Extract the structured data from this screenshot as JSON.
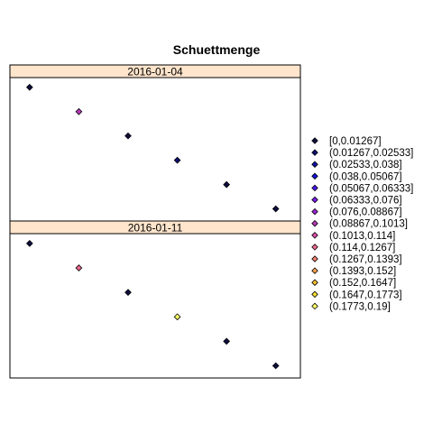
{
  "chart_data": {
    "type": "scatter",
    "title": "Schuettmenge",
    "xlabel": "",
    "ylabel": "",
    "panels": [
      {
        "strip": "2016-01-04",
        "points": [
          {
            "x": 1,
            "y": 6,
            "bin": 0
          },
          {
            "x": 2,
            "y": 5,
            "bin": 7
          },
          {
            "x": 3,
            "y": 4,
            "bin": 0
          },
          {
            "x": 4,
            "y": 3,
            "bin": 1
          },
          {
            "x": 5,
            "y": 2,
            "bin": 0
          },
          {
            "x": 6,
            "y": 1,
            "bin": 0
          }
        ]
      },
      {
        "strip": "2016-01-11",
        "points": [
          {
            "x": 1,
            "y": 6,
            "bin": 0
          },
          {
            "x": 2,
            "y": 5,
            "bin": 9
          },
          {
            "x": 3,
            "y": 4,
            "bin": 0
          },
          {
            "x": 4,
            "y": 3,
            "bin": 14
          },
          {
            "x": 5,
            "y": 2,
            "bin": 0
          },
          {
            "x": 6,
            "y": 1,
            "bin": 0
          }
        ]
      }
    ],
    "legend": {
      "position": "right",
      "entries": [
        {
          "label": "[0,0.01267]",
          "color": "#0D0D40"
        },
        {
          "label": "(0.01267,0.02533]",
          "color": "#0E0E70"
        },
        {
          "label": "(0.02533,0.038]",
          "color": "#1212A8"
        },
        {
          "label": "(0.038,0.05067]",
          "color": "#1414D8"
        },
        {
          "label": "(0.05067,0.06333]",
          "color": "#4A16F0"
        },
        {
          "label": "(0.06333,0.076]",
          "color": "#7A1AE8"
        },
        {
          "label": "(0.076,0.08867]",
          "color": "#9A22D0"
        },
        {
          "label": "(0.08867,0.1013]",
          "color": "#B838B8"
        },
        {
          "label": "(0.1013,0.114]",
          "color": "#E050A8"
        },
        {
          "label": "(0.114,0.1267]",
          "color": "#F06890"
        },
        {
          "label": "(0.1267,0.1393]",
          "color": "#F08070"
        },
        {
          "label": "(0.1393,0.152]",
          "color": "#F8A050"
        },
        {
          "label": "(0.152,0.1647]",
          "color": "#F8C030"
        },
        {
          "label": "(0.1647,0.1773]",
          "color": "#F8E030"
        },
        {
          "label": "(0.1773,0.19]",
          "color": "#FFFF66"
        }
      ]
    },
    "strip_color": "#FFE5CC",
    "point_shape": "diamond"
  }
}
